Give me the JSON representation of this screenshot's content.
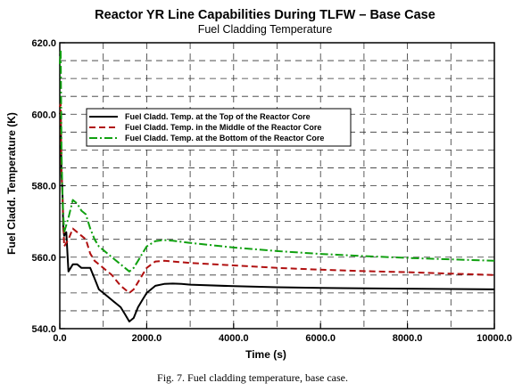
{
  "chart_data": {
    "type": "line",
    "title": "Reactor YR Line Capabilities During TLFW – Base Case",
    "subtitle": "Fuel Cladding Temperature",
    "xlabel": "Time (s)",
    "ylabel": "Fuel Cladd. Temperature (K)",
    "xlim": [
      0,
      10000
    ],
    "ylim": [
      540,
      620
    ],
    "xticks": [
      0,
      2000,
      4000,
      6000,
      8000,
      10000
    ],
    "xtick_labels": [
      "0.0",
      "2000.0",
      "4000.0",
      "6000.0",
      "8000.0",
      "10000.0"
    ],
    "yticks": [
      540,
      560,
      580,
      600,
      620
    ],
    "ytick_labels": [
      "540.0",
      "560.0",
      "580.0",
      "600.0",
      "620.0"
    ],
    "grid": "dashed",
    "legend_position": "upper-center",
    "series": [
      {
        "name": "Fuel Cladd. Temp. at the Top of the Reactor Core",
        "color": "#000000",
        "dash": "solid",
        "x": [
          0,
          20,
          40,
          60,
          80,
          100,
          150,
          200,
          300,
          400,
          500,
          600,
          700,
          800,
          900,
          1000,
          1100,
          1200,
          1300,
          1400,
          1500,
          1600,
          1700,
          1800,
          1900,
          2000,
          2200,
          2400,
          2600,
          2800,
          3000,
          4000,
          5000,
          6000,
          7000,
          8000,
          9000,
          10000
        ],
        "y": [
          600,
          601,
          583,
          579,
          568,
          566,
          567,
          556,
          558,
          558,
          557,
          557,
          557,
          554,
          551,
          550,
          549,
          548,
          547,
          546,
          544,
          542,
          543,
          546,
          548,
          550,
          552,
          552.5,
          552.6,
          552.5,
          552.3,
          551.9,
          551.6,
          551.4,
          551.3,
          551.2,
          551.1,
          551
        ]
      },
      {
        "name": "Fuel Cladd. Temp. in the Middle of the Reactor Core",
        "color": "#b01010",
        "dash": "dashed",
        "x": [
          0,
          20,
          40,
          60,
          80,
          100,
          200,
          300,
          400,
          500,
          600,
          700,
          800,
          900,
          1000,
          1200,
          1400,
          1500,
          1600,
          1700,
          1800,
          1900,
          2000,
          2200,
          2400,
          2600,
          3000,
          4000,
          5000,
          6000,
          7000,
          8000,
          9000,
          10000
        ],
        "y": [
          602,
          603,
          584,
          578,
          571,
          563,
          565,
          568,
          567,
          566,
          565,
          561,
          559,
          558,
          557,
          555,
          552,
          551,
          550,
          551,
          553,
          555,
          557,
          558.8,
          559,
          558.8,
          558.4,
          557.7,
          557,
          556.5,
          556.1,
          555.8,
          555.4,
          555
        ]
      },
      {
        "name": "Fuel Cladd. Temp. at the Bottom of the Reactor Core",
        "color": "#10a010",
        "dash": "dashdot",
        "x": [
          0,
          20,
          40,
          60,
          80,
          100,
          200,
          300,
          400,
          500,
          600,
          700,
          800,
          900,
          1000,
          1200,
          1400,
          1500,
          1600,
          1700,
          1800,
          1900,
          2000,
          2200,
          2400,
          2600,
          3000,
          4000,
          5000,
          6000,
          7000,
          8000,
          9000,
          10000
        ],
        "y": [
          614,
          618,
          590,
          578,
          572,
          567,
          571,
          576,
          575,
          573,
          572,
          568,
          565,
          563,
          562,
          560,
          558,
          557,
          556,
          557,
          559,
          561,
          563,
          564.5,
          564.8,
          564.6,
          564,
          562.7,
          561.7,
          560.9,
          560.3,
          559.8,
          559.4,
          559
        ]
      }
    ],
    "caption": "Fig. 7.  Fuel cladding temperature, base case."
  }
}
